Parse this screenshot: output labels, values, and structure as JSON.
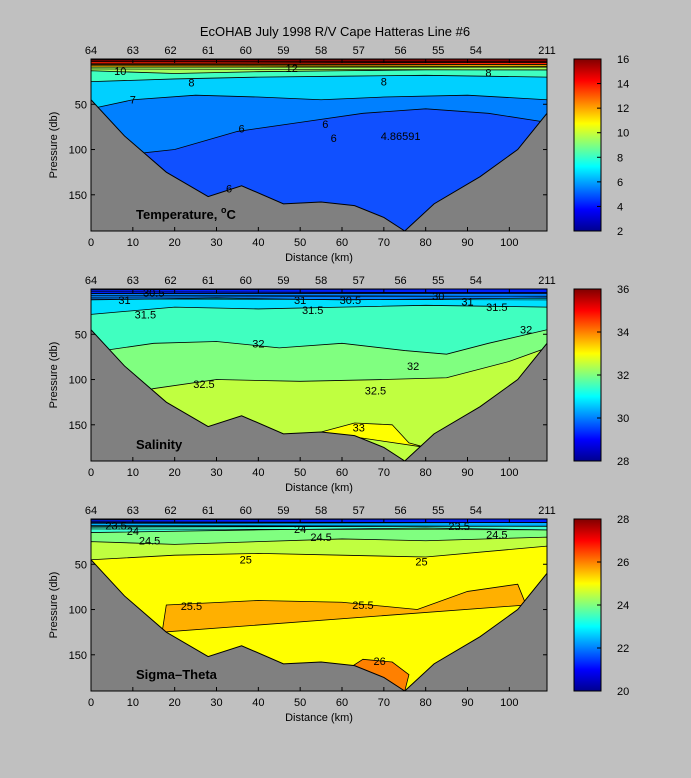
{
  "figure": {
    "title": "EcOHAB   July 1998   R/V Cape Hatteras   Line #6"
  },
  "colors": {
    "background": "#c0c0c0",
    "bottom_fill": "#808080",
    "colormap": [
      "#00008f",
      "#0000ff",
      "#0080ff",
      "#00ffff",
      "#80ff80",
      "#ffff00",
      "#ff8000",
      "#ff0000",
      "#800000"
    ]
  },
  "chart_data": [
    {
      "type": "contour",
      "label": "Temperature, °C",
      "label_main": "Temperature, ",
      "label_sup": "o",
      "label_unit": "C",
      "xlabel": "Distance (km)",
      "ylabel": "Pressure (db)",
      "xlim": [
        0,
        109
      ],
      "ylim": [
        190,
        0
      ],
      "xticks": [
        0,
        10,
        20,
        30,
        40,
        50,
        60,
        70,
        80,
        90,
        100
      ],
      "yticks": [
        50,
        100,
        150
      ],
      "stations": [
        {
          "label": "64",
          "x": 0
        },
        {
          "label": "63",
          "x": 10
        },
        {
          "label": "62",
          "x": 19
        },
        {
          "label": "61",
          "x": 28
        },
        {
          "label": "60",
          "x": 37
        },
        {
          "label": "59",
          "x": 46
        },
        {
          "label": "58",
          "x": 55
        },
        {
          "label": "57",
          "x": 64
        },
        {
          "label": "56",
          "x": 74
        },
        {
          "label": "55",
          "x": 83
        },
        {
          "label": "54",
          "x": 92
        },
        {
          "label": "211",
          "x": 109
        }
      ],
      "bottom_profile": [
        [
          0,
          45
        ],
        [
          8,
          85
        ],
        [
          18,
          125
        ],
        [
          28,
          152
        ],
        [
          36,
          140
        ],
        [
          46,
          160
        ],
        [
          55,
          158
        ],
        [
          63,
          162
        ],
        [
          70,
          175
        ],
        [
          75,
          190
        ],
        [
          82,
          160
        ],
        [
          93,
          130
        ],
        [
          102,
          100
        ],
        [
          109,
          60
        ]
      ],
      "bands": [
        {
          "top": [
            [
              0,
              0
            ],
            [
              109,
              0
            ]
          ],
          "color": "#800000"
        },
        {
          "top": [
            [
              0,
              3
            ],
            [
              109,
              3
            ]
          ],
          "color": "#ff2000"
        },
        {
          "top": [
            [
              0,
              6
            ],
            [
              109,
              6
            ]
          ],
          "color": "#ffc000"
        },
        {
          "top": [
            [
              0,
              9
            ],
            [
              109,
              9
            ]
          ],
          "color": "#a0ff60"
        },
        {
          "top": [
            [
              0,
              13
            ],
            [
              20,
              16
            ],
            [
              40,
              14
            ],
            [
              60,
              13
            ],
            [
              80,
              12
            ],
            [
              109,
              12
            ]
          ],
          "color": "#40ffc0"
        },
        {
          "top": [
            [
              0,
              25
            ],
            [
              20,
              22
            ],
            [
              40,
              20
            ],
            [
              60,
              19
            ],
            [
              80,
              18
            ],
            [
              109,
              20
            ]
          ],
          "color": "#00d0ff"
        },
        {
          "top": [
            [
              0,
              55
            ],
            [
              10,
              45
            ],
            [
              25,
              40
            ],
            [
              40,
              42
            ],
            [
              55,
              45
            ],
            [
              70,
              42
            ],
            [
              90,
              40
            ],
            [
              109,
              45
            ]
          ],
          "color": "#0080ff"
        },
        {
          "top": [
            [
              0,
              110
            ],
            [
              20,
              100
            ],
            [
              35,
              80
            ],
            [
              50,
              70
            ],
            [
              65,
              60
            ],
            [
              80,
              55
            ],
            [
              95,
              60
            ],
            [
              109,
              70
            ]
          ],
          "color": "#1050ff"
        }
      ],
      "contour_labels": [
        {
          "text": "7",
          "x": 10,
          "y": 45
        },
        {
          "text": "8",
          "x": 24,
          "y": 26
        },
        {
          "text": "6",
          "x": 36,
          "y": 77
        },
        {
          "text": "6",
          "x": 56,
          "y": 72
        },
        {
          "text": "6",
          "x": 58,
          "y": 87
        },
        {
          "text": "4.86591",
          "x": 74,
          "y": 85
        },
        {
          "text": "8",
          "x": 70,
          "y": 25
        },
        {
          "text": "8",
          "x": 95,
          "y": 15
        },
        {
          "text": "6",
          "x": 33,
          "y": 143
        },
        {
          "text": "10",
          "x": 7,
          "y": 13
        },
        {
          "text": "12",
          "x": 48,
          "y": 10
        }
      ],
      "colorbar": {
        "range": [
          2,
          16
        ],
        "ticks": [
          2,
          4,
          6,
          8,
          10,
          12,
          14,
          16
        ]
      }
    },
    {
      "type": "contour",
      "label": "Salinity",
      "label_main": "Salinity",
      "label_sup": "",
      "label_unit": "",
      "xlabel": "Distance (km)",
      "ylabel": "Pressure (db)",
      "xlim": [
        0,
        109
      ],
      "ylim": [
        190,
        0
      ],
      "xticks": [
        0,
        10,
        20,
        30,
        40,
        50,
        60,
        70,
        80,
        90,
        100
      ],
      "yticks": [
        50,
        100,
        150
      ],
      "stations": [
        {
          "label": "64",
          "x": 0
        },
        {
          "label": "63",
          "x": 10
        },
        {
          "label": "62",
          "x": 19
        },
        {
          "label": "61",
          "x": 28
        },
        {
          "label": "60",
          "x": 37
        },
        {
          "label": "59",
          "x": 46
        },
        {
          "label": "58",
          "x": 55
        },
        {
          "label": "57",
          "x": 64
        },
        {
          "label": "56",
          "x": 74
        },
        {
          "label": "55",
          "x": 83
        },
        {
          "label": "54",
          "x": 92
        },
        {
          "label": "211",
          "x": 109
        }
      ],
      "bottom_profile": [
        [
          0,
          45
        ],
        [
          8,
          85
        ],
        [
          18,
          125
        ],
        [
          28,
          152
        ],
        [
          36,
          140
        ],
        [
          46,
          160
        ],
        [
          55,
          158
        ],
        [
          63,
          162
        ],
        [
          70,
          175
        ],
        [
          75,
          190
        ],
        [
          82,
          160
        ],
        [
          93,
          130
        ],
        [
          102,
          100
        ],
        [
          109,
          60
        ]
      ],
      "bands": [
        {
          "top": [
            [
              0,
              0
            ],
            [
              109,
              0
            ]
          ],
          "color": "#0020ff"
        },
        {
          "top": [
            [
              0,
              5
            ],
            [
              109,
              5
            ]
          ],
          "color": "#0080ff"
        },
        {
          "top": [
            [
              0,
              12
            ],
            [
              30,
              10
            ],
            [
              60,
              12
            ],
            [
              109,
              10
            ]
          ],
          "color": "#00e0ff"
        },
        {
          "top": [
            [
              0,
              28
            ],
            [
              20,
              20
            ],
            [
              40,
              22
            ],
            [
              60,
              20
            ],
            [
              80,
              18
            ],
            [
              109,
              20
            ]
          ],
          "color": "#40ffc0"
        },
        {
          "top": [
            [
              0,
              70
            ],
            [
              15,
              60
            ],
            [
              30,
              58
            ],
            [
              45,
              65
            ],
            [
              60,
              60
            ],
            [
              75,
              68
            ],
            [
              85,
              72
            ],
            [
              95,
              60
            ],
            [
              109,
              45
            ]
          ],
          "color": "#80ff80"
        },
        {
          "top": [
            [
              0,
              125
            ],
            [
              15,
              110
            ],
            [
              30,
              100
            ],
            [
              50,
              102
            ],
            [
              70,
              100
            ],
            [
              85,
              98
            ],
            [
              100,
              80
            ],
            [
              109,
              65
            ]
          ],
          "color": "#c0ff40"
        },
        {
          "top": [
            [
              55,
              158
            ],
            [
              63,
              148
            ],
            [
              72,
              150
            ],
            [
              76,
              170
            ],
            [
              80,
              175
            ]
          ],
          "color": "#ffff00"
        }
      ],
      "contour_labels": [
        {
          "text": "30.5",
          "x": 15,
          "y": 4
        },
        {
          "text": "31",
          "x": 8,
          "y": 12
        },
        {
          "text": "31.5",
          "x": 13,
          "y": 28
        },
        {
          "text": "31",
          "x": 50,
          "y": 12
        },
        {
          "text": "31.5",
          "x": 53,
          "y": 23
        },
        {
          "text": "30.5",
          "x": 62,
          "y": 12
        },
        {
          "text": "30",
          "x": 83,
          "y": 8
        },
        {
          "text": "31",
          "x": 90,
          "y": 14
        },
        {
          "text": "31.5",
          "x": 97,
          "y": 20
        },
        {
          "text": "32",
          "x": 104,
          "y": 45
        },
        {
          "text": "32",
          "x": 40,
          "y": 60
        },
        {
          "text": "32",
          "x": 77,
          "y": 85
        },
        {
          "text": "32.5",
          "x": 27,
          "y": 105
        },
        {
          "text": "32.5",
          "x": 68,
          "y": 112
        },
        {
          "text": "33",
          "x": 64,
          "y": 153
        }
      ],
      "colorbar": {
        "range": [
          28,
          36
        ],
        "ticks": [
          28,
          30,
          32,
          34,
          36
        ]
      }
    },
    {
      "type": "contour",
      "label": "Sigma-Theta",
      "label_main": "Sigma–Theta",
      "label_sup": "",
      "label_unit": "",
      "xlabel": "Distance (km)",
      "ylabel": "Pressure (db)",
      "xlim": [
        0,
        109
      ],
      "ylim": [
        190,
        0
      ],
      "xticks": [
        0,
        10,
        20,
        30,
        40,
        50,
        60,
        70,
        80,
        90,
        100
      ],
      "yticks": [
        50,
        100,
        150
      ],
      "stations": [
        {
          "label": "64",
          "x": 0
        },
        {
          "label": "63",
          "x": 10
        },
        {
          "label": "62",
          "x": 19
        },
        {
          "label": "61",
          "x": 28
        },
        {
          "label": "60",
          "x": 37
        },
        {
          "label": "59",
          "x": 46
        },
        {
          "label": "58",
          "x": 55
        },
        {
          "label": "57",
          "x": 64
        },
        {
          "label": "56",
          "x": 74
        },
        {
          "label": "55",
          "x": 83
        },
        {
          "label": "54",
          "x": 92
        },
        {
          "label": "211",
          "x": 109
        }
      ],
      "bottom_profile": [
        [
          0,
          45
        ],
        [
          8,
          85
        ],
        [
          18,
          125
        ],
        [
          28,
          152
        ],
        [
          36,
          140
        ],
        [
          46,
          160
        ],
        [
          55,
          158
        ],
        [
          63,
          162
        ],
        [
          70,
          175
        ],
        [
          75,
          190
        ],
        [
          82,
          160
        ],
        [
          93,
          130
        ],
        [
          102,
          100
        ],
        [
          109,
          60
        ]
      ],
      "bands": [
        {
          "top": [
            [
              0,
              0
            ],
            [
              109,
              0
            ]
          ],
          "color": "#0020ff"
        },
        {
          "top": [
            [
              0,
              4
            ],
            [
              109,
              4
            ]
          ],
          "color": "#00b0ff"
        },
        {
          "top": [
            [
              0,
              8
            ],
            [
              109,
              8
            ]
          ],
          "color": "#40ffd0"
        },
        {
          "top": [
            [
              0,
              15
            ],
            [
              40,
              12
            ],
            [
              80,
              10
            ],
            [
              109,
              12
            ]
          ],
          "color": "#80ff80"
        },
        {
          "top": [
            [
              0,
              25
            ],
            [
              20,
              28
            ],
            [
              40,
              25
            ],
            [
              60,
              22
            ],
            [
              80,
              24
            ],
            [
              109,
              20
            ]
          ],
          "color": "#c0ff40"
        },
        {
          "top": [
            [
              0,
              45
            ],
            [
              20,
              40
            ],
            [
              40,
              38
            ],
            [
              60,
              40
            ],
            [
              80,
              42
            ],
            [
              109,
              30
            ]
          ],
          "color": "#ffff00"
        },
        {
          "top": [
            [
              17,
              125
            ],
            [
              18,
              95
            ],
            [
              40,
              90
            ],
            [
              60,
              92
            ],
            [
              78,
              100
            ],
            [
              90,
              80
            ],
            [
              102,
              72
            ],
            [
              104,
              95
            ]
          ],
          "color": "#ffb000"
        },
        {
          "top": [
            [
              60,
              170
            ],
            [
              65,
              155
            ],
            [
              72,
              158
            ],
            [
              76,
              172
            ],
            [
              75,
              190
            ]
          ],
          "color": "#ff8000"
        }
      ],
      "contour_labels": [
        {
          "text": "23.5",
          "x": 6,
          "y": 7
        },
        {
          "text": "24",
          "x": 10,
          "y": 13
        },
        {
          "text": "24.5",
          "x": 14,
          "y": 24
        },
        {
          "text": "24",
          "x": 50,
          "y": 11
        },
        {
          "text": "24.5",
          "x": 55,
          "y": 20
        },
        {
          "text": "23.5",
          "x": 88,
          "y": 8
        },
        {
          "text": "24.5",
          "x": 97,
          "y": 17
        },
        {
          "text": "25",
          "x": 37,
          "y": 45
        },
        {
          "text": "25",
          "x": 79,
          "y": 47
        },
        {
          "text": "25.5",
          "x": 24,
          "y": 96
        },
        {
          "text": "25.5",
          "x": 65,
          "y": 95
        },
        {
          "text": "26",
          "x": 69,
          "y": 157
        }
      ],
      "colorbar": {
        "range": [
          20,
          28
        ],
        "ticks": [
          20,
          22,
          24,
          26,
          28
        ]
      }
    }
  ]
}
